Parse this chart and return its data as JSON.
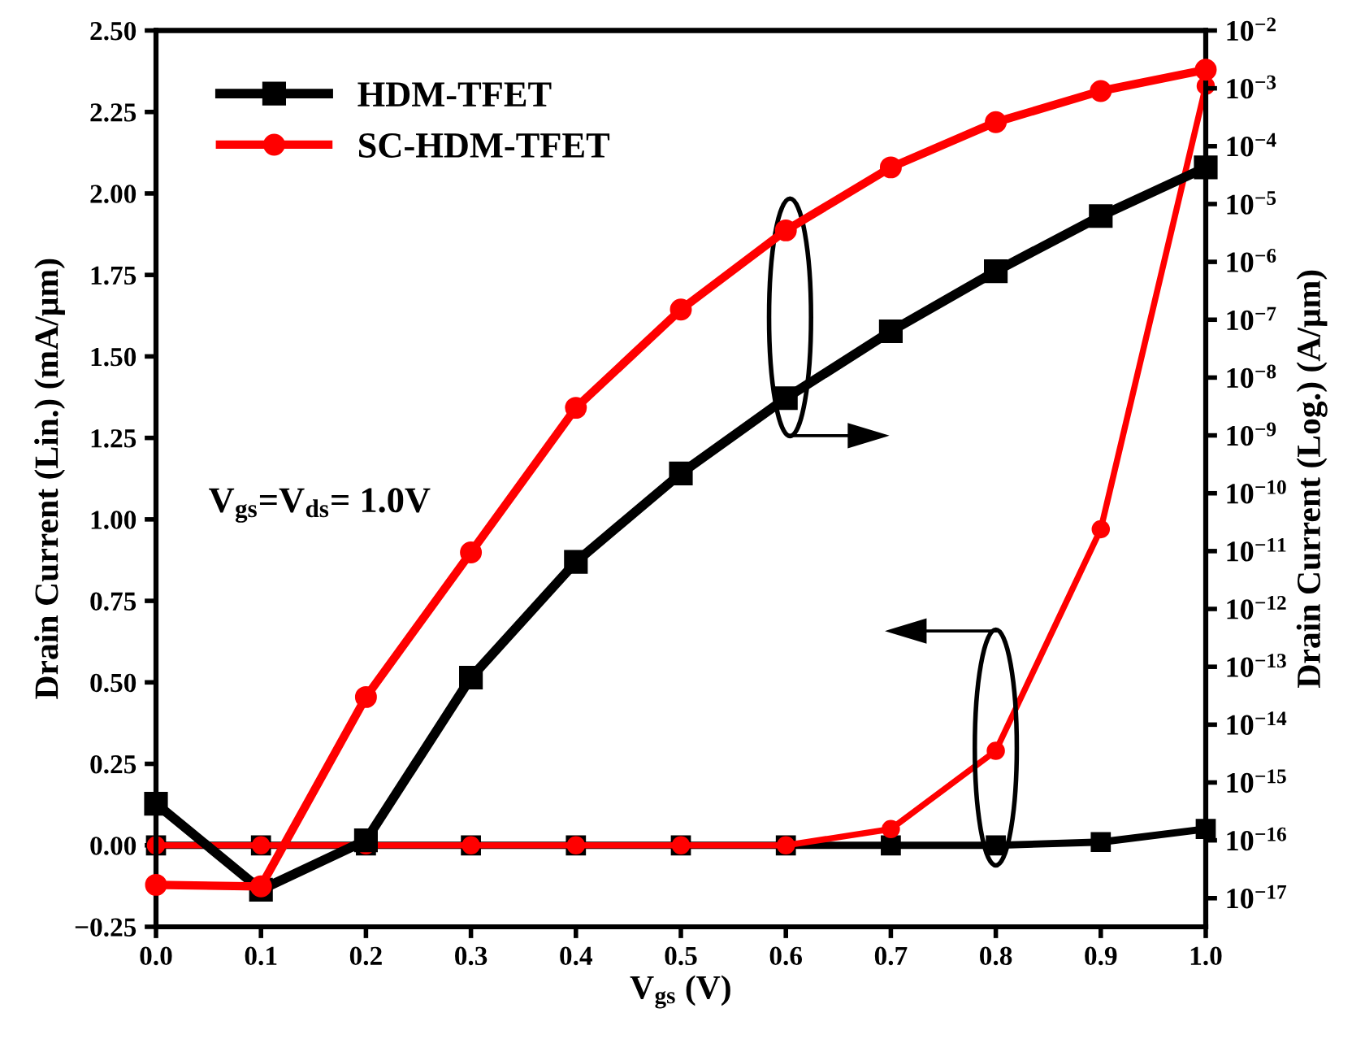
{
  "chart_data": {
    "type": "line",
    "xlabel": "V$_{gs}$ (V)",
    "ylabel": "Drain Current (Lin.) (mA/μm)",
    "y2label": "Drain Current (Log.) (A/μm)",
    "x": [
      0.0,
      0.1,
      0.2,
      0.3,
      0.4,
      0.5,
      0.6,
      0.7,
      0.8,
      0.9,
      1.0
    ],
    "xlim": [
      0.0,
      1.0
    ],
    "xticks": [
      {
        "value": 0.0,
        "label": "0.0"
      },
      {
        "value": 0.1,
        "label": "0.1"
      },
      {
        "value": 0.2,
        "label": "0.2"
      },
      {
        "value": 0.3,
        "label": "0.3"
      },
      {
        "value": 0.4,
        "label": "0.4"
      },
      {
        "value": 0.5,
        "label": "0.5"
      },
      {
        "value": 0.6,
        "label": "0.6"
      },
      {
        "value": 0.7,
        "label": "0.7"
      },
      {
        "value": 0.8,
        "label": "0.8"
      },
      {
        "value": 0.9,
        "label": "0.9"
      },
      {
        "value": 1.0,
        "label": "1.0"
      }
    ],
    "ylim": [
      -0.25,
      2.5
    ],
    "yticks": [
      {
        "value": -0.25,
        "label": "−0.25"
      },
      {
        "value": 0,
        "label": "0.00"
      },
      {
        "value": 0.25,
        "label": "0.25"
      },
      {
        "value": 0.5,
        "label": "0.50"
      },
      {
        "value": 0.75,
        "label": "0.75"
      },
      {
        "value": 1.0,
        "label": "1.00"
      },
      {
        "value": 1.25,
        "label": "1.25"
      },
      {
        "value": 1.5,
        "label": "1.50"
      },
      {
        "value": 1.75,
        "label": "1.75"
      },
      {
        "value": 2.0,
        "label": "2.00"
      },
      {
        "value": 2.25,
        "label": "2.25"
      },
      {
        "value": 2.5,
        "label": "2.50"
      }
    ],
    "log": "y2",
    "y2lim": [
      3.2e-18,
      0.01
    ],
    "y2ticks": [
      {
        "value": 0.01,
        "label": "10$^{−2}$"
      },
      {
        "value": 0.001,
        "label": "10$^{−3}$"
      },
      {
        "value": 0.0001,
        "label": "10$^{−4}$"
      },
      {
        "value": 1e-05,
        "label": "10$^{−5}$"
      },
      {
        "value": 1e-06,
        "label": "10$^{−6}$"
      },
      {
        "value": 1e-07,
        "label": "10$^{−7}$"
      },
      {
        "value": 1e-08,
        "label": "10$^{−8}$"
      },
      {
        "value": 1e-09,
        "label": "10$^{−9}$"
      },
      {
        "value": 1e-10,
        "label": "10$^{−10}$"
      },
      {
        "value": 1e-11,
        "label": "10$^{−11}$"
      },
      {
        "value": 1e-12,
        "label": "10$^{−12}$"
      },
      {
        "value": 1e-13,
        "label": "10$^{−13}$"
      },
      {
        "value": 1e-14,
        "label": "10$^{−14}$"
      },
      {
        "value": 1e-15,
        "label": "10$^{−15}$"
      },
      {
        "value": 1e-16,
        "label": "10$^{−16}$"
      },
      {
        "value": 1e-17,
        "label": "10$^{−17}$"
      }
    ],
    "series": [
      {
        "name": "HDM-TFET",
        "color": "#000000",
        "marker": "square",
        "axis": "y2",
        "values": [
          4.3e-16,
          1.4e-17,
          1e-16,
          6.5e-14,
          6.5e-12,
          2.2e-10,
          4.4e-09,
          6.3e-08,
          6.9e-07,
          6.2e-06,
          4.3e-05
        ]
      },
      {
        "name": "SC-HDM-TFET",
        "color": "#ff0000",
        "marker": "circle",
        "axis": "y2",
        "values": [
          1.7e-17,
          1.6e-17,
          3e-14,
          9.5e-12,
          3e-09,
          1.5e-07,
          3.5e-06,
          4.3e-05,
          0.00026,
          0.0009,
          0.0021
        ]
      },
      {
        "color": "#000000",
        "marker": "square",
        "values": [
          0,
          0,
          0,
          0,
          0,
          0,
          0,
          0,
          0,
          0.01,
          0.05
        ]
      },
      {
        "color": "#ff0000",
        "marker": "circle",
        "values": [
          0,
          0,
          0,
          0,
          0,
          0,
          0,
          0.05,
          0.29,
          0.97,
          2.33
        ]
      }
    ],
    "annotations": [
      "V$_{gs}$=V$_{ds}$= 1.0V"
    ],
    "legend": "top left",
    "grid": false,
    "line_style": "solid"
  }
}
